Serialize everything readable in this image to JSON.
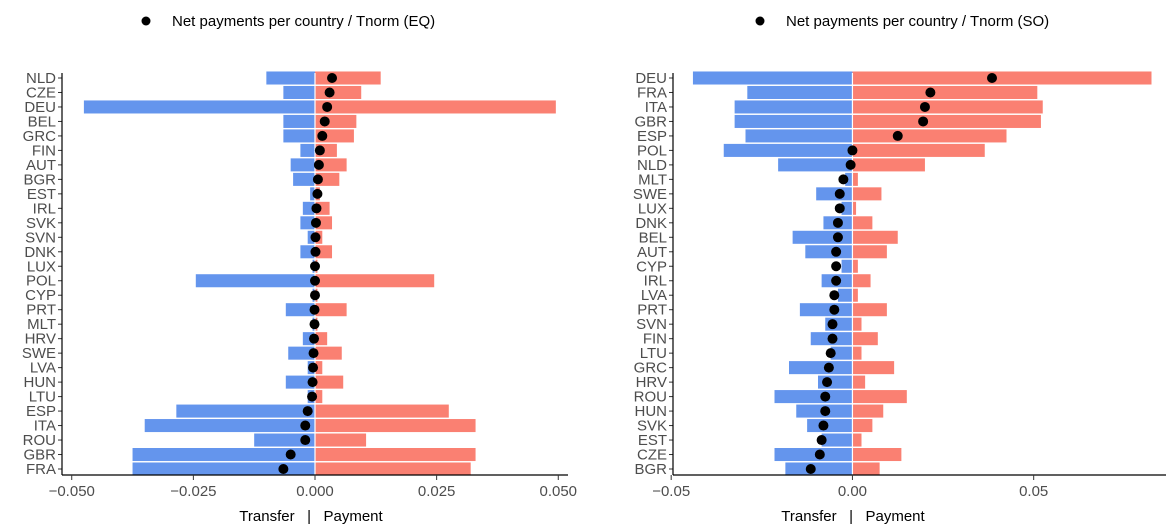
{
  "colors": {
    "transfer": "#6495ED",
    "payment": "#FA8072",
    "net_point": "#000000"
  },
  "chart_data": [
    {
      "type": "bar",
      "orientation": "horizontal-diverging",
      "legend": {
        "label": "Net payments per country / Tnorm (EQ)",
        "placement": "top"
      },
      "xlabel": "Transfer   |   Payment",
      "xlim": [
        -0.052,
        0.052
      ],
      "xticks": [
        -0.05,
        -0.025,
        0.0,
        0.025,
        0.05
      ],
      "xtick_labels": [
        "−0.050",
        "−0.025",
        "0.000",
        "0.025",
        "0.050"
      ],
      "categories": [
        "NLD",
        "CZE",
        "DEU",
        "BEL",
        "GRC",
        "FIN",
        "AUT",
        "BGR",
        "EST",
        "IRL",
        "SVK",
        "SVN",
        "DNK",
        "LUX",
        "POL",
        "CYP",
        "PRT",
        "MLT",
        "HRV",
        "SWE",
        "LVA",
        "HUN",
        "LTU",
        "ESP",
        "ITA",
        "ROU",
        "GBR",
        "FRA"
      ],
      "series": [
        {
          "name": "Transfer",
          "values": [
            -0.01,
            -0.0065,
            -0.0475,
            -0.0065,
            -0.0065,
            -0.003,
            -0.005,
            -0.0045,
            -0.001,
            -0.0025,
            -0.003,
            -0.0015,
            -0.003,
            -0.0005,
            -0.0245,
            -0.0005,
            -0.006,
            -0.0005,
            -0.0025,
            -0.0055,
            -0.0015,
            -0.006,
            -0.0015,
            -0.0285,
            -0.035,
            -0.0125,
            -0.0375,
            -0.0375
          ]
        },
        {
          "name": "Payment",
          "values": [
            0.0135,
            0.0095,
            0.0495,
            0.0085,
            0.008,
            0.0045,
            0.0065,
            0.005,
            0.001,
            0.003,
            0.0035,
            0.0015,
            0.0035,
            0.0005,
            0.0245,
            0.0005,
            0.0065,
            0.0005,
            0.0025,
            0.0055,
            0.0015,
            0.0058,
            0.0015,
            0.0275,
            0.033,
            0.0105,
            0.033,
            0.032
          ]
        },
        {
          "name": "Net payments per country / Tnorm (EQ)",
          "values": [
            0.0035,
            0.003,
            0.0025,
            0.002,
            0.0015,
            0.001,
            0.0008,
            0.0006,
            0.0005,
            0.0003,
            0.0002,
            0.0001,
            0.0001,
            0.0,
            0.0,
            0.0,
            -0.0001,
            -0.0001,
            -0.0002,
            -0.0003,
            -0.0004,
            -0.0005,
            -0.0006,
            -0.0015,
            -0.002,
            -0.002,
            -0.005,
            -0.0065
          ]
        }
      ]
    },
    {
      "type": "bar",
      "orientation": "horizontal-diverging",
      "legend": {
        "label": "Net payments per country / Tnorm (SO)",
        "placement": "top"
      },
      "xlabel": "Transfer   |   Payment",
      "xlim": [
        -0.0495,
        0.0865
      ],
      "xticks": [
        -0.05,
        0.0,
        0.05
      ],
      "xtick_labels": [
        "−0.05",
        "0.00",
        "0.05"
      ],
      "categories": [
        "DEU",
        "FRA",
        "ITA",
        "GBR",
        "ESP",
        "POL",
        "NLD",
        "MLT",
        "SWE",
        "LUX",
        "DNK",
        "BEL",
        "AUT",
        "CYP",
        "IRL",
        "LVA",
        "PRT",
        "SVN",
        "FIN",
        "LTU",
        "GRC",
        "HRV",
        "ROU",
        "HUN",
        "SVK",
        "EST",
        "CZE",
        "BGR"
      ],
      "series": [
        {
          "name": "Transfer",
          "values": [
            -0.044,
            -0.029,
            -0.0325,
            -0.0325,
            -0.0295,
            -0.0355,
            -0.0205,
            -0.002,
            -0.01,
            -0.003,
            -0.008,
            -0.0165,
            -0.013,
            -0.003,
            -0.0085,
            -0.004,
            -0.0145,
            -0.0075,
            -0.0115,
            -0.006,
            -0.0175,
            -0.0095,
            -0.0215,
            -0.0155,
            -0.0125,
            -0.0085,
            -0.0215,
            -0.0185
          ]
        },
        {
          "name": "Payment",
          "values": [
            0.0825,
            0.051,
            0.0525,
            0.052,
            0.0425,
            0.0365,
            0.02,
            0.0015,
            0.008,
            0.001,
            0.0055,
            0.0125,
            0.0095,
            0.0015,
            0.005,
            0.0015,
            0.0095,
            0.0025,
            0.007,
            0.0025,
            0.0115,
            0.0035,
            0.015,
            0.0085,
            0.0055,
            0.0025,
            0.0135,
            0.0075
          ]
        },
        {
          "name": "Net payments per country / Tnorm (SO)",
          "values": [
            0.0385,
            0.0215,
            0.02,
            0.0195,
            0.0125,
            0.0,
            -0.0005,
            -0.0025,
            -0.0035,
            -0.0035,
            -0.004,
            -0.004,
            -0.0045,
            -0.0045,
            -0.0045,
            -0.005,
            -0.005,
            -0.0055,
            -0.0055,
            -0.006,
            -0.0065,
            -0.007,
            -0.0075,
            -0.0075,
            -0.008,
            -0.0085,
            -0.009,
            -0.0115
          ]
        }
      ]
    }
  ]
}
